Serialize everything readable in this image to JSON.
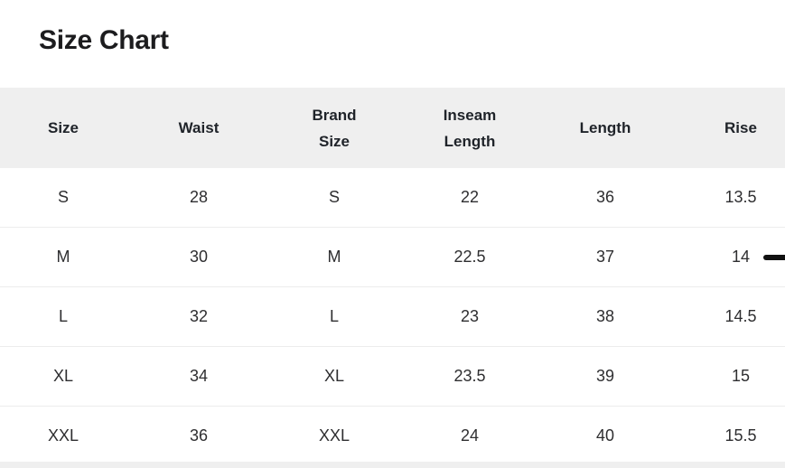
{
  "page": {
    "title": "Size Chart"
  },
  "table": {
    "columns": [
      {
        "key": "size",
        "label": "Size"
      },
      {
        "key": "waist",
        "label": "Waist"
      },
      {
        "key": "brand-size",
        "label": "Brand Size"
      },
      {
        "key": "inseam-length",
        "label": "Inseam Length"
      },
      {
        "key": "length",
        "label": "Length"
      },
      {
        "key": "rise",
        "label": "Rise"
      }
    ],
    "rows": [
      [
        "S",
        "28",
        "S",
        "22",
        "36",
        "13.5"
      ],
      [
        "M",
        "30",
        "M",
        "22.5",
        "37",
        "14"
      ],
      [
        "L",
        "32",
        "L",
        "23",
        "38",
        "14.5"
      ],
      [
        "XL",
        "34",
        "XL",
        "23.5",
        "39",
        "15"
      ],
      [
        "XXL",
        "36",
        "XXL",
        "24",
        "40",
        "15.5"
      ]
    ]
  },
  "colors": {
    "header_bg": "#efefef",
    "row_border": "#ececec",
    "title_text": "#1c1c1e",
    "header_text": "#1f2329",
    "cell_text": "#2e2e30",
    "page_bg": "#ffffff",
    "marker": "#111111"
  }
}
